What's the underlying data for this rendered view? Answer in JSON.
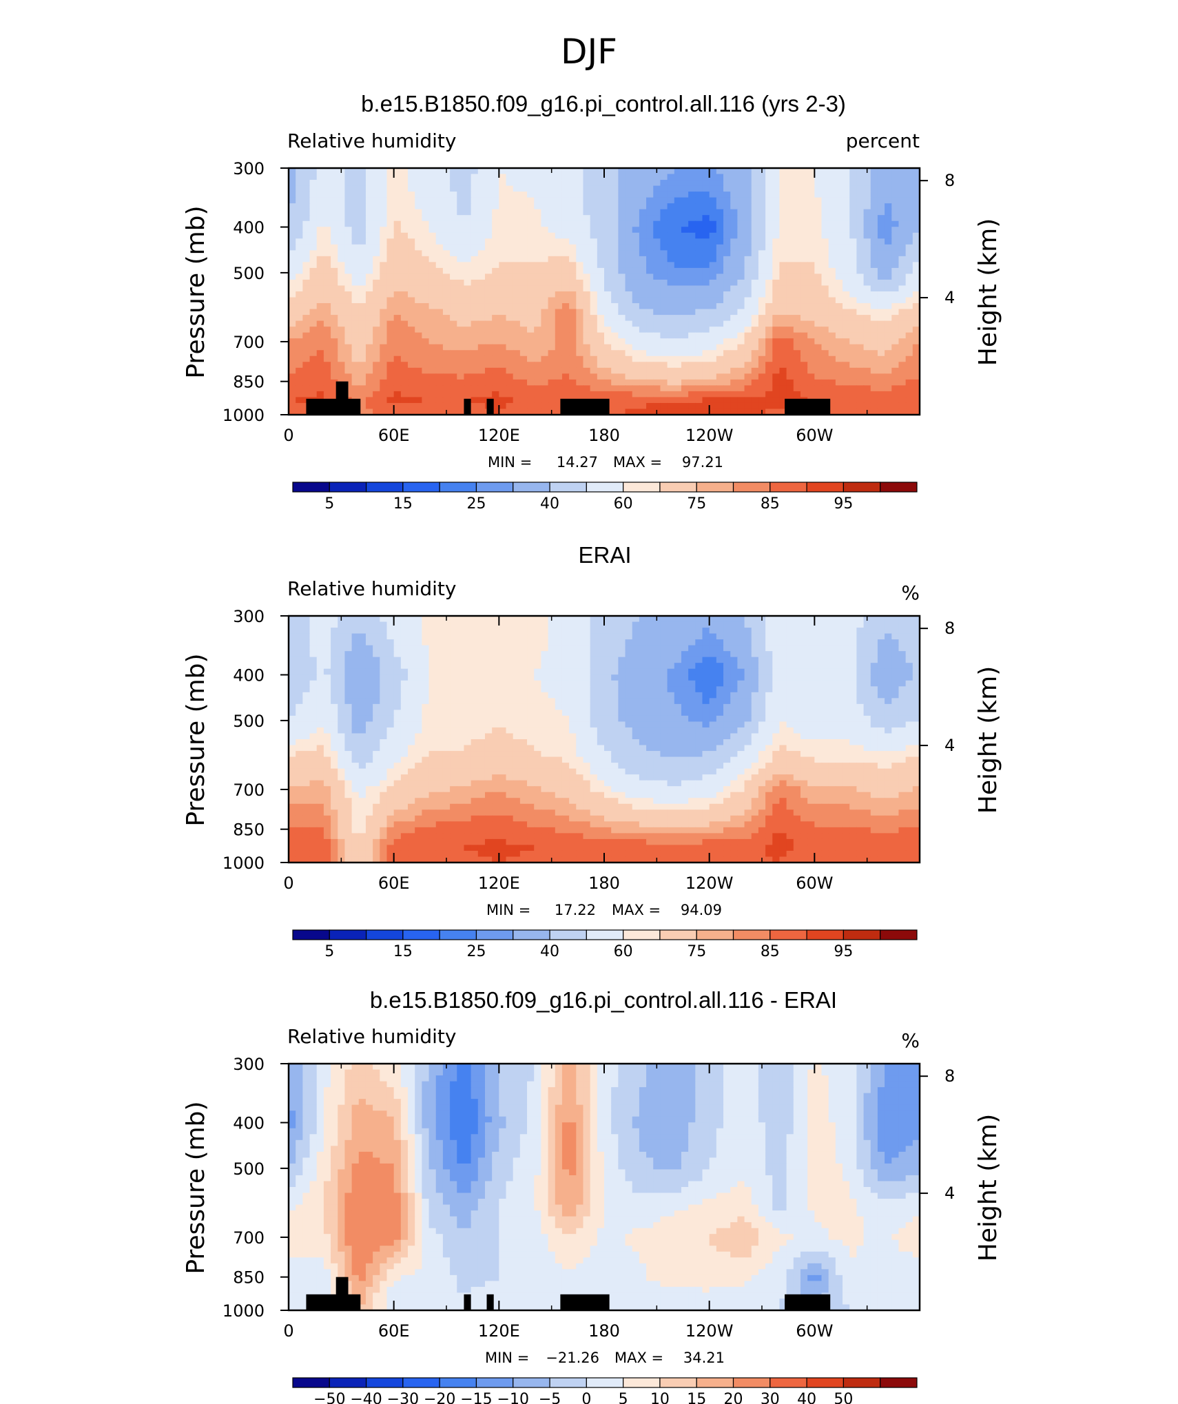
{
  "figure": {
    "title": "DJF",
    "colors": {
      "land_mask": "#000000",
      "frame": "#000000"
    }
  },
  "scales": {
    "full_field": {
      "levels": [
        5,
        10,
        15,
        20,
        25,
        30,
        40,
        50,
        60,
        65,
        75,
        80,
        85,
        90,
        95
      ],
      "labels": [
        "5",
        "15",
        "25",
        "40",
        "60",
        "75",
        "85",
        "95"
      ],
      "colors": [
        "#08088c",
        "#0a23b8",
        "#1446dc",
        "#2864f0",
        "#4682f0",
        "#6e9bef",
        "#97b6ee",
        "#bfd2f2",
        "#e1ebf9",
        "#fce8d9",
        "#f9cdb3",
        "#f6b08c",
        "#f28c64",
        "#ee6640",
        "#e14520",
        "#bf2c10",
        "#8c0a0a"
      ]
    },
    "difference": {
      "levels": [
        -50,
        -40,
        -30,
        -20,
        -15,
        -10,
        -5,
        0,
        5,
        10,
        15,
        20,
        30,
        40,
        50
      ],
      "labels": [
        "−50",
        "−40",
        "−30",
        "−20",
        "−15",
        "−10",
        "−5",
        "0",
        "5",
        "10",
        "15",
        "20",
        "30",
        "40",
        "50"
      ],
      "colors": [
        "#08088c",
        "#0a23b8",
        "#1446dc",
        "#2864f0",
        "#4682f0",
        "#6e9bef",
        "#97b6ee",
        "#bfd2f2",
        "#e1ebf9",
        "#fce8d9",
        "#f9cdb3",
        "#f6b08c",
        "#f28c64",
        "#ee6640",
        "#e14520",
        "#bf2c10",
        "#8c0a0a"
      ]
    }
  },
  "chart_data": [
    {
      "type": "heatmap",
      "title": "b.e15.B1850.f09_g16.pi_control.all.116 (yrs 2-3)",
      "left_label": "Relative humidity",
      "right_label": "percent",
      "xlabel": "",
      "ylabel": "Pressure (mb)",
      "y2label": "Height (km)",
      "x_ticks": [
        "0",
        "60E",
        "120E",
        "180",
        "120W",
        "60W"
      ],
      "y_ticks": [
        "300",
        "400",
        "500",
        "700",
        "850",
        "1000"
      ],
      "y2_ticks": [
        "8",
        "4"
      ],
      "ylim": [
        1000,
        300
      ],
      "stats": {
        "min_label": "MIN =",
        "min": "14.27",
        "max_label": "MAX =",
        "max": "97.21"
      },
      "scale": "full_field",
      "field": {
        "lons": [
          0,
          20,
          40,
          60,
          80,
          100,
          120,
          140,
          160,
          180,
          200,
          220,
          240,
          260,
          280,
          300,
          320,
          340,
          360
        ],
        "levels": [
          300,
          400,
          500,
          600,
          700,
          850,
          925,
          1000
        ],
        "values": [
          [
            35,
            55,
            45,
            62,
            55,
            45,
            60,
            58,
            52,
            45,
            35,
            30,
            28,
            38,
            60,
            60,
            50,
            35,
            35
          ],
          [
            40,
            62,
            45,
            66,
            60,
            50,
            62,
            62,
            56,
            45,
            28,
            20,
            18,
            32,
            62,
            62,
            52,
            25,
            40
          ],
          [
            55,
            70,
            55,
            72,
            68,
            62,
            66,
            66,
            70,
            48,
            32,
            26,
            26,
            40,
            66,
            66,
            55,
            35,
            55
          ],
          [
            70,
            78,
            66,
            80,
            76,
            72,
            74,
            72,
            84,
            56,
            40,
            38,
            40,
            52,
            74,
            72,
            65,
            60,
            70
          ],
          [
            80,
            85,
            70,
            84,
            80,
            78,
            80,
            76,
            82,
            66,
            55,
            52,
            55,
            66,
            88,
            80,
            75,
            72,
            80
          ],
          [
            86,
            88,
            78,
            88,
            86,
            86,
            88,
            84,
            86,
            80,
            76,
            74,
            76,
            82,
            92,
            86,
            84,
            82,
            86
          ],
          [
            90,
            91,
            84,
            91,
            90,
            90,
            91,
            88,
            90,
            88,
            88,
            88,
            90,
            90,
            92,
            90,
            90,
            88,
            90
          ],
          [
            88,
            86,
            82,
            88,
            88,
            88,
            90,
            87,
            86,
            88,
            92,
            94,
            94,
            92,
            88,
            86,
            88,
            87,
            88
          ]
        ]
      },
      "land_mask": [
        {
          "lon0": 10,
          "lon1": 41,
          "top_p": 925
        },
        {
          "lon0": 27,
          "lon1": 34,
          "top_p": 850
        },
        {
          "lon0": 100,
          "lon1": 104,
          "top_p": 925
        },
        {
          "lon0": 113,
          "lon1": 117,
          "top_p": 925
        },
        {
          "lon0": 155,
          "lon1": 183,
          "top_p": 925
        },
        {
          "lon0": 283,
          "lon1": 309,
          "top_p": 925
        }
      ]
    },
    {
      "type": "heatmap",
      "title": "ERAI",
      "left_label": "Relative humidity",
      "right_label": "%",
      "xlabel": "",
      "ylabel": "Pressure (mb)",
      "y2label": "Height (km)",
      "x_ticks": [
        "0",
        "60E",
        "120E",
        "180",
        "120W",
        "60W"
      ],
      "y_ticks": [
        "300",
        "400",
        "500",
        "700",
        "850",
        "1000"
      ],
      "y2_ticks": [
        "8",
        "4"
      ],
      "ylim": [
        1000,
        300
      ],
      "stats": {
        "min_label": "MIN =",
        "min": "17.22",
        "max_label": "MAX =",
        "max": "94.09"
      },
      "scale": "full_field",
      "field": {
        "lons": [
          0,
          20,
          40,
          60,
          80,
          100,
          120,
          140,
          160,
          180,
          200,
          220,
          240,
          260,
          280,
          300,
          320,
          340,
          360
        ],
        "levels": [
          300,
          400,
          500,
          600,
          700,
          850,
          925,
          1000
        ],
        "values": [
          [
            45,
            55,
            42,
            55,
            62,
            62,
            64,
            62,
            58,
            45,
            40,
            38,
            32,
            40,
            58,
            55,
            55,
            42,
            45
          ],
          [
            42,
            52,
            28,
            45,
            60,
            60,
            62,
            60,
            58,
            42,
            35,
            28,
            20,
            30,
            56,
            50,
            52,
            32,
            42
          ],
          [
            50,
            60,
            35,
            50,
            62,
            62,
            64,
            62,
            60,
            44,
            36,
            32,
            28,
            38,
            60,
            55,
            56,
            45,
            50
          ],
          [
            66,
            68,
            45,
            58,
            66,
            66,
            70,
            66,
            64,
            52,
            42,
            40,
            42,
            55,
            68,
            64,
            64,
            62,
            66
          ],
          [
            76,
            78,
            58,
            66,
            74,
            76,
            80,
            76,
            72,
            62,
            55,
            52,
            56,
            66,
            85,
            76,
            76,
            72,
            76
          ],
          [
            86,
            85,
            62,
            82,
            86,
            88,
            89,
            86,
            84,
            80,
            78,
            76,
            78,
            82,
            90,
            86,
            86,
            84,
            86
          ],
          [
            90,
            89,
            65,
            89,
            90,
            90,
            91,
            90,
            89,
            88,
            88,
            87,
            88,
            88,
            92,
            88,
            90,
            89,
            90
          ],
          [
            90,
            89,
            62,
            89,
            89,
            89,
            90,
            89,
            88,
            88,
            88,
            87,
            87,
            88,
            90,
            86,
            89,
            88,
            90
          ]
        ]
      },
      "land_mask": []
    },
    {
      "type": "heatmap",
      "title": "b.e15.B1850.f09_g16.pi_control.all.116 - ERAI",
      "left_label": "Relative humidity",
      "right_label": "%",
      "xlabel": "",
      "ylabel": "Pressure (mb)",
      "y2label": "Height (km)",
      "x_ticks": [
        "0",
        "60E",
        "120E",
        "180",
        "120W",
        "60W"
      ],
      "y_ticks": [
        "300",
        "400",
        "500",
        "700",
        "850",
        "1000"
      ],
      "y2_ticks": [
        "8",
        "4"
      ],
      "ylim": [
        1000,
        300
      ],
      "stats": {
        "min_label": "MIN =",
        "min": "−21.26",
        "max_label": "MAX =",
        "max": "34.21"
      },
      "scale": "difference",
      "field": {
        "lons": [
          0,
          20,
          40,
          60,
          80,
          100,
          120,
          140,
          160,
          180,
          200,
          220,
          240,
          260,
          280,
          300,
          320,
          340,
          360
        ],
        "levels": [
          300,
          400,
          500,
          600,
          700,
          850,
          925,
          1000
        ],
        "values": [
          [
            -10,
            4,
            12,
            6,
            -6,
            -18,
            -4,
            0,
            18,
            2,
            -4,
            -8,
            -3,
            4,
            -6,
            6,
            2,
            -10,
            -10
          ],
          [
            -12,
            4,
            18,
            16,
            -8,
            -20,
            -6,
            2,
            22,
            2,
            -6,
            -8,
            -2,
            4,
            -4,
            8,
            2,
            -14,
            -12
          ],
          [
            -6,
            8,
            22,
            20,
            -4,
            -16,
            -2,
            3,
            22,
            4,
            -4,
            -6,
            0,
            4,
            -2,
            8,
            4,
            -10,
            -6
          ],
          [
            4,
            10,
            26,
            24,
            -2,
            -8,
            0,
            4,
            20,
            4,
            2,
            4,
            6,
            8,
            -2,
            6,
            6,
            2,
            4
          ],
          [
            8,
            8,
            26,
            22,
            2,
            -4,
            0,
            2,
            10,
            4,
            6,
            8,
            10,
            14,
            6,
            4,
            6,
            4,
            8
          ],
          [
            2,
            2,
            22,
            6,
            3,
            -1,
            0,
            1,
            4,
            1,
            4,
            8,
            8,
            6,
            2,
            -12,
            4,
            3,
            2
          ],
          [
            1,
            1,
            18,
            2,
            2,
            0,
            1,
            1,
            2,
            1,
            2,
            3,
            4,
            3,
            1,
            -8,
            2,
            2,
            1
          ],
          [
            0,
            0,
            16,
            0,
            1,
            0,
            0,
            0,
            0,
            0,
            2,
            3,
            3,
            2,
            0,
            -4,
            0,
            0,
            0
          ]
        ]
      },
      "land_mask": [
        {
          "lon0": 10,
          "lon1": 41,
          "top_p": 925
        },
        {
          "lon0": 27,
          "lon1": 34,
          "top_p": 850
        },
        {
          "lon0": 100,
          "lon1": 104,
          "top_p": 925
        },
        {
          "lon0": 113,
          "lon1": 117,
          "top_p": 925
        },
        {
          "lon0": 155,
          "lon1": 183,
          "top_p": 925
        },
        {
          "lon0": 283,
          "lon1": 309,
          "top_p": 925
        }
      ]
    }
  ]
}
